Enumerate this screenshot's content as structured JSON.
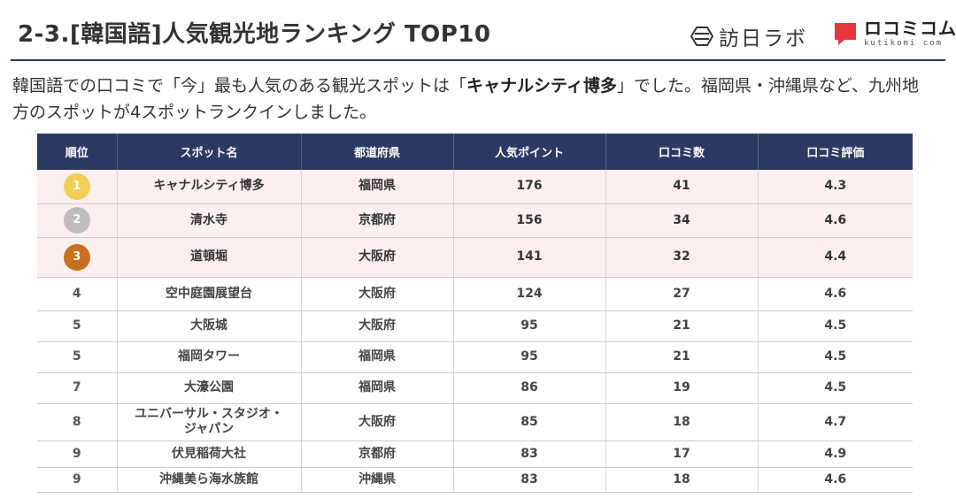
{
  "header": {
    "title": "2-3.[韓国語]人気観光地ランキング TOP10",
    "logo_houjin": {
      "text": "訪日ラボ",
      "icon": "houjin-lab-icon"
    },
    "logo_kuchikomi": {
      "text": "ロコミコム",
      "sub": "kutikomi com",
      "icon": "kuchikomi-icon",
      "color": "#e8363f"
    }
  },
  "lead": {
    "part1": "韓国語での口コミで「今」最も人気のある観光スポットは「",
    "highlight": "キャナルシティ博多",
    "part2": "」でした。福岡県・沖縄県など、九州地方のスポットが4スポットランクインしました。"
  },
  "colors": {
    "header_bg": "#2a3a63",
    "top_row_bg": "#fceff0",
    "gold": "#f2cf56",
    "silver": "#bdbdbd",
    "bronze": "#c8701f"
  },
  "table": {
    "columns": [
      "順位",
      "スポット名",
      "都道府県",
      "人気ポイント",
      "口コミ数",
      "口コミ評価"
    ],
    "rows": [
      {
        "rank": "1",
        "medal": "gold",
        "name": "キャナルシティ博多",
        "pref": "福岡県",
        "points": "176",
        "reviews": "41",
        "rating": "4.3"
      },
      {
        "rank": "2",
        "medal": "silver",
        "name": "清水寺",
        "pref": "京都府",
        "points": "156",
        "reviews": "34",
        "rating": "4.6"
      },
      {
        "rank": "3",
        "medal": "bronze",
        "name": "道頓堀",
        "pref": "大阪府",
        "points": "141",
        "reviews": "32",
        "rating": "4.4"
      },
      {
        "rank": "4",
        "name": "空中庭園展望台",
        "pref": "大阪府",
        "points": "124",
        "reviews": "27",
        "rating": "4.6"
      },
      {
        "rank": "5",
        "name": "大阪城",
        "pref": "大阪府",
        "points": "95",
        "reviews": "21",
        "rating": "4.5"
      },
      {
        "rank": "5",
        "name": "福岡タワー",
        "pref": "福岡県",
        "points": "95",
        "reviews": "21",
        "rating": "4.5"
      },
      {
        "rank": "7",
        "name": "大濠公園",
        "pref": "福岡県",
        "points": "86",
        "reviews": "19",
        "rating": "4.5"
      },
      {
        "rank": "8",
        "name": "ユニバーサル・スタジオ・ジャパン",
        "name_line1": "ユニバーサル・スタジオ・",
        "name_line2": "ジャパン",
        "pref": "大阪府",
        "points": "85",
        "reviews": "18",
        "rating": "4.7"
      },
      {
        "rank": "9",
        "name": "伏見稲荷大社",
        "pref": "京都府",
        "points": "83",
        "reviews": "17",
        "rating": "4.9"
      },
      {
        "rank": "9",
        "name": "沖縄美ら海水族館",
        "pref": "沖縄県",
        "points": "83",
        "reviews": "18",
        "rating": "4.6"
      }
    ]
  }
}
